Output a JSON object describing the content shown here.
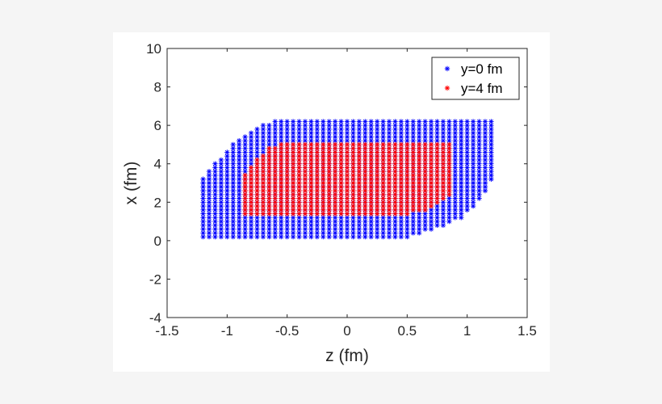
{
  "chart_data": {
    "type": "scatter",
    "title": "",
    "xlabel": "z (fm)",
    "ylabel": "x (fm)",
    "xlim": [
      -1.5,
      1.5
    ],
    "ylim": [
      -4,
      10
    ],
    "xticks": [
      -1.5,
      -1,
      -0.5,
      0,
      0.5,
      1,
      1.5
    ],
    "xtick_labels": [
      "-1.5",
      "-1",
      "-0.5",
      "0",
      "0.5",
      "1",
      "1.5"
    ],
    "yticks": [
      -4,
      -2,
      0,
      2,
      4,
      6,
      8,
      10
    ],
    "ytick_labels": [
      "-4",
      "-2",
      "0",
      "2",
      "4",
      "6",
      "8",
      "10"
    ],
    "grid": false,
    "legend_position": "top-right",
    "marker": "*",
    "series": [
      {
        "name": "y=0 fm",
        "color": "#0000ff",
        "x_step": 0.05,
        "y_step": 0.2,
        "region": {
          "x_min": -1.2,
          "x_max": 1.2,
          "y_min_profile": [
            [
              -1.2,
              0.2
            ],
            [
              0.5,
              0.2
            ],
            [
              0.6,
              0.4
            ],
            [
              0.8,
              0.7
            ],
            [
              0.95,
              1.2
            ],
            [
              1.05,
              1.7
            ],
            [
              1.15,
              2.5
            ],
            [
              1.2,
              3.2
            ]
          ],
          "y_max_profile": [
            [
              -1.2,
              3.3
            ],
            [
              -1.1,
              4.0
            ],
            [
              -1.0,
              4.7
            ],
            [
              -0.9,
              5.3
            ],
            [
              -0.8,
              5.7
            ],
            [
              -0.7,
              6.0
            ],
            [
              -0.6,
              6.2
            ],
            [
              -0.55,
              6.3
            ],
            [
              1.2,
              6.3
            ]
          ]
        }
      },
      {
        "name": "y=4 fm",
        "color": "#ff0000",
        "x_step": 0.05,
        "y_step": 0.2,
        "region": {
          "x_min": -0.85,
          "x_max": 0.85,
          "y_min_profile": [
            [
              -0.85,
              1.4
            ],
            [
              0.5,
              1.4
            ],
            [
              0.65,
              1.6
            ],
            [
              0.75,
              1.9
            ],
            [
              0.85,
              2.3
            ]
          ],
          "y_max_profile": [
            [
              -0.85,
              3.4
            ],
            [
              -0.75,
              4.3
            ],
            [
              -0.65,
              4.8
            ],
            [
              -0.5,
              5.1
            ],
            [
              0.85,
              5.1
            ]
          ]
        }
      }
    ]
  }
}
